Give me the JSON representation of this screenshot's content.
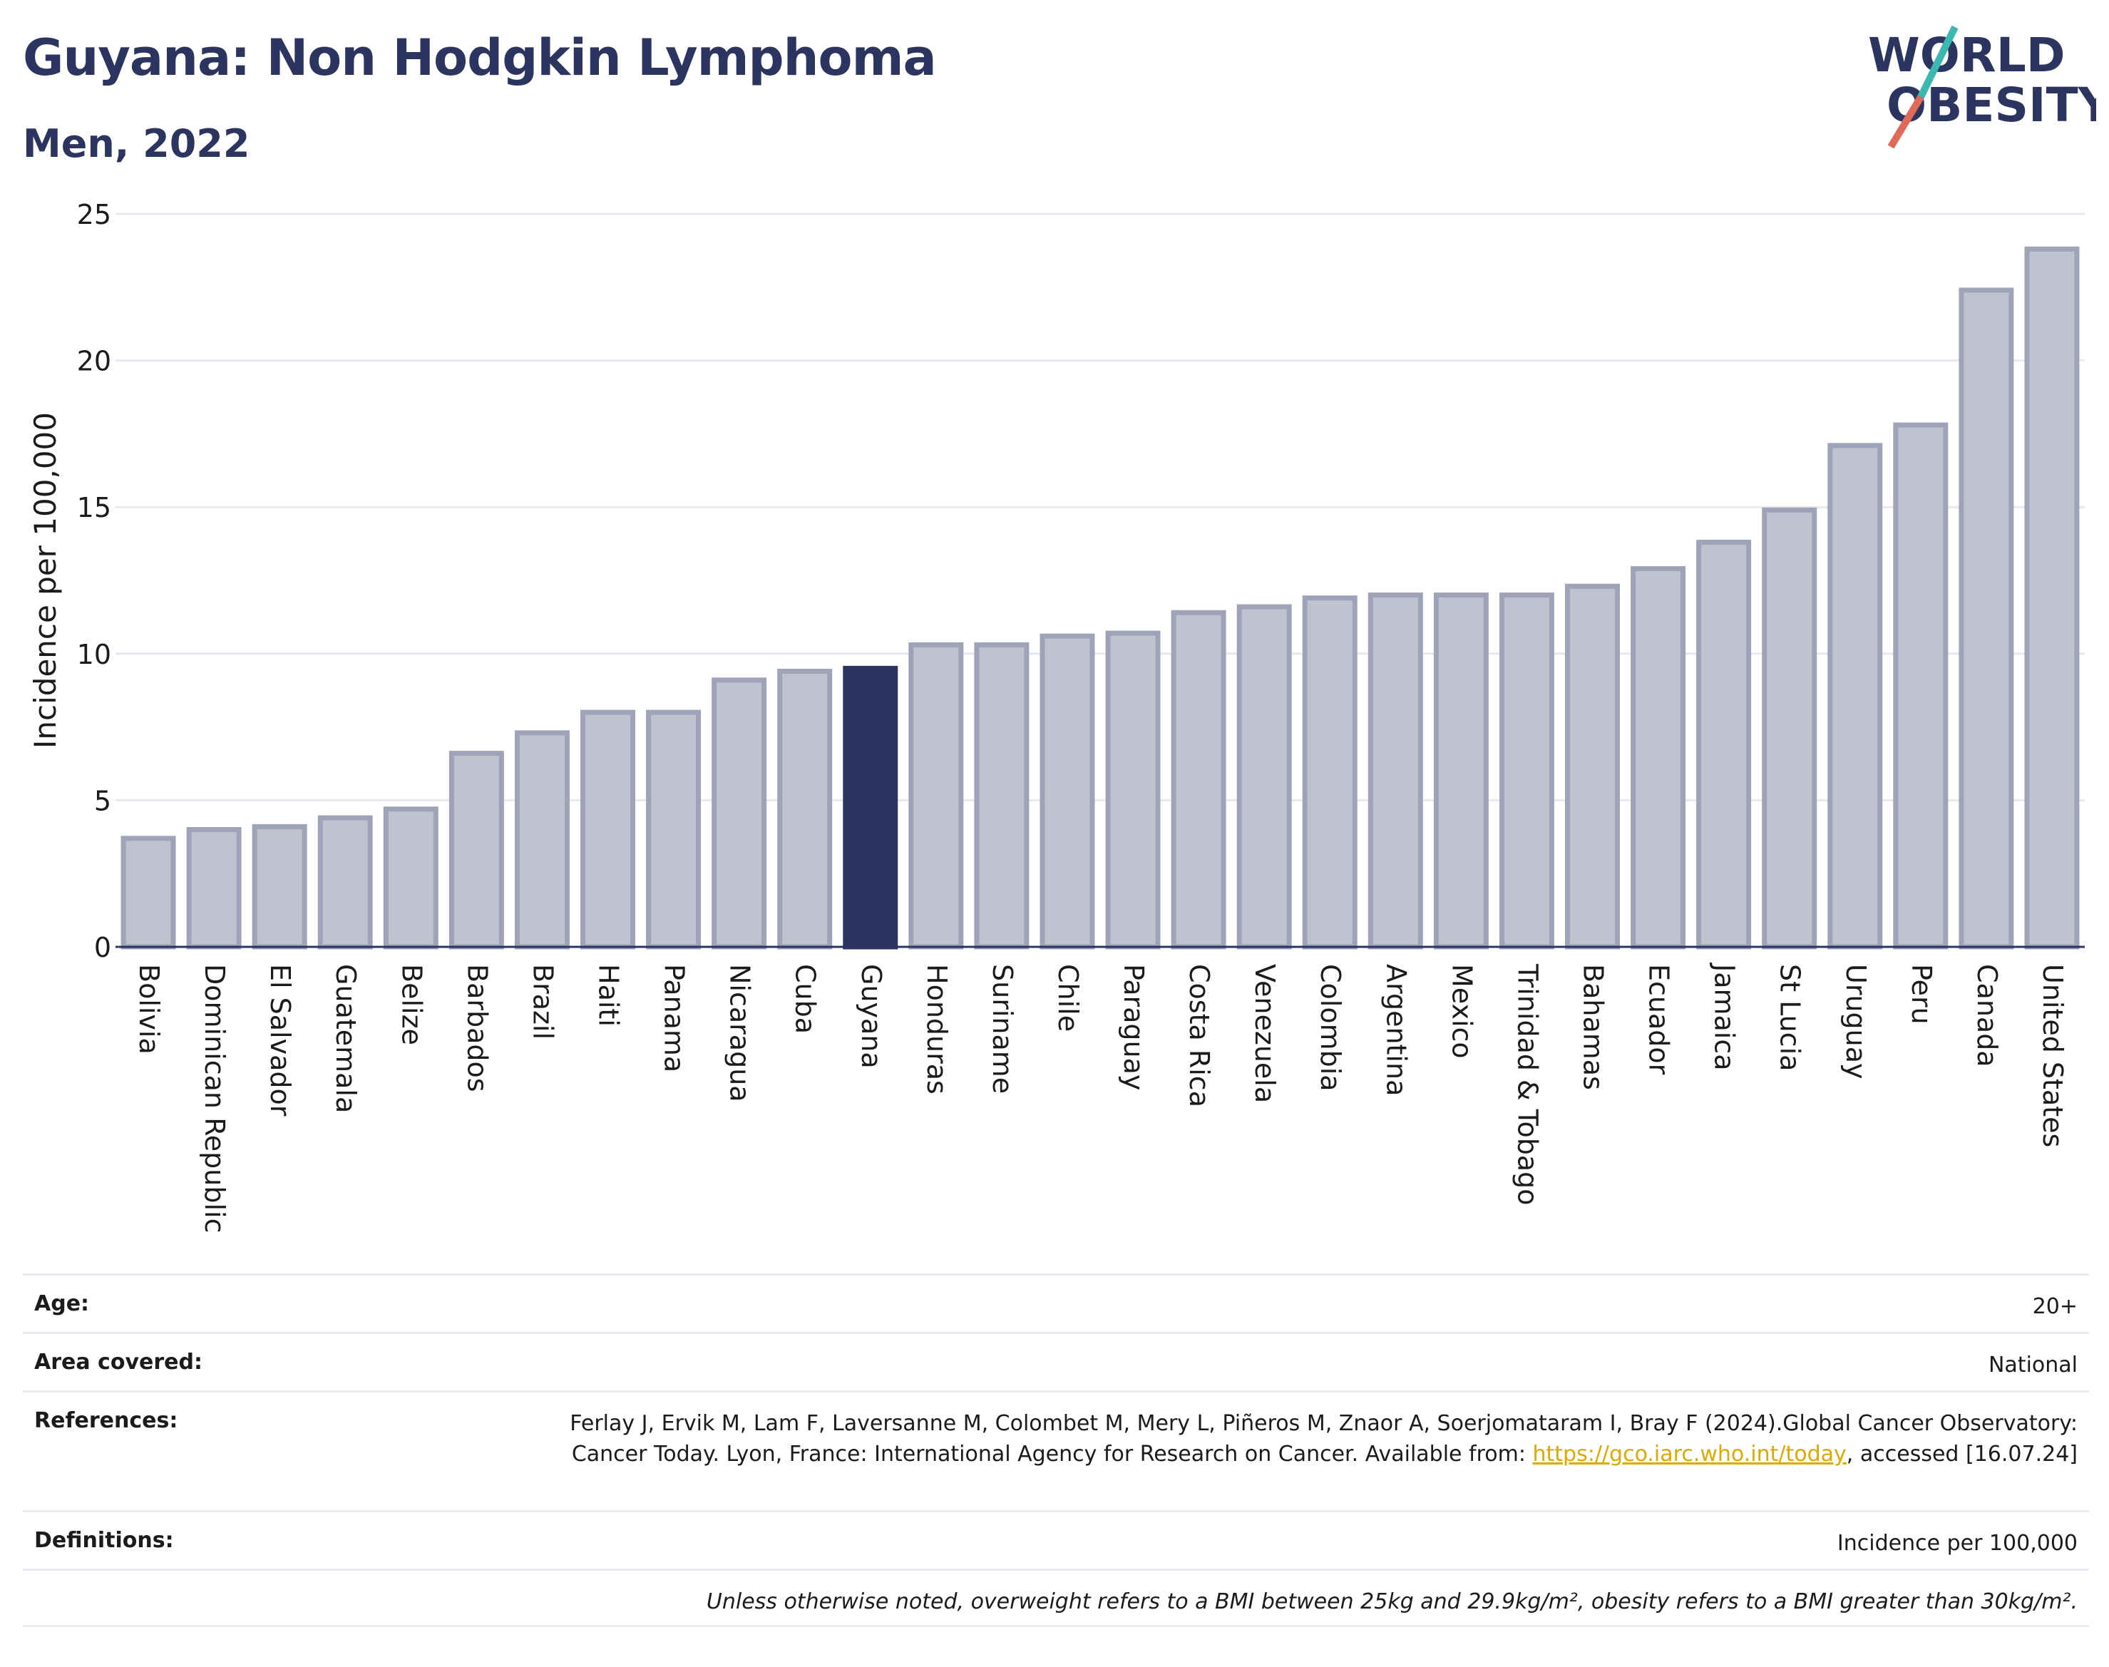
{
  "header": {
    "title": "Guyana: Non Hodgkin Lymphoma",
    "subtitle": "Men, 2022"
  },
  "logo": {
    "line1": "WORLD",
    "line2": "OBESITY"
  },
  "chart_data": {
    "type": "bar",
    "title": "Guyana: Non Hodgkin Lymphoma",
    "subtitle": "Men, 2022",
    "ylabel": "Incidence per 100,000",
    "xlabel": "",
    "ylim": [
      0,
      25
    ],
    "yticks": [
      0,
      5,
      10,
      15,
      20,
      25
    ],
    "grid": true,
    "highlight": "Guyana",
    "colors": {
      "bar": "#bfc3d0",
      "bar_edge": "#9ea3b8",
      "highlight": "#2b3560"
    },
    "categories": [
      "Bolivia",
      "Dominican Republic",
      "El Salvador",
      "Guatemala",
      "Belize",
      "Barbados",
      "Brazil",
      "Haiti",
      "Panama",
      "Nicaragua",
      "Cuba",
      "Guyana",
      "Honduras",
      "Suriname",
      "Chile",
      "Paraguay",
      "Costa Rica",
      "Venezuela",
      "Colombia",
      "Argentina",
      "Mexico",
      "Trinidad & Tobago",
      "Bahamas",
      "Ecuador",
      "Jamaica",
      "St Lucia",
      "Uruguay",
      "Peru",
      "Canada",
      "United States"
    ],
    "values": [
      3.7,
      4.0,
      4.1,
      4.4,
      4.7,
      6.6,
      7.3,
      8.0,
      8.0,
      9.1,
      9.4,
      9.5,
      10.3,
      10.3,
      10.6,
      10.7,
      11.4,
      11.6,
      11.9,
      12.0,
      12.0,
      12.0,
      12.3,
      12.9,
      13.8,
      14.9,
      17.1,
      17.8,
      22.4,
      23.8
    ]
  },
  "meta": {
    "age_label": "Age:",
    "age_value": "20+",
    "area_label": "Area covered:",
    "area_value": "National",
    "refs_label": "References:",
    "refs_text_1": "Ferlay J, Ervik M, Lam F, Laversanne M, Colombet M, Mery L, Piñeros M, Znaor A, Soerjomataram I, Bray F (2024).Global Cancer Observatory: Cancer Today. Lyon, France: International Agency for Research on Cancer. Available from: ",
    "refs_link": "https://gco.iarc.who.int/today",
    "refs_text_2": ", accessed [16.07.24]",
    "definitions_label": "Definitions:",
    "definitions_value": "Incidence per 100,000",
    "note": "Unless otherwise noted, overweight refers to a BMI between 25kg and 29.9kg/m², obesity refers to a BMI greater than 30kg/m²."
  }
}
